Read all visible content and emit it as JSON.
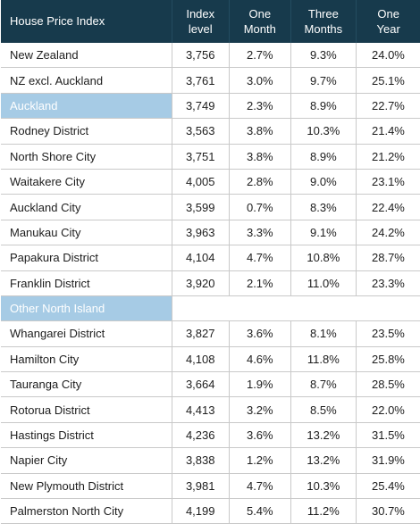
{
  "headers": [
    "House Price Index",
    "Index level",
    "One Month",
    "Three Months",
    "One Year"
  ],
  "rows": [
    {
      "name": "New Zealand",
      "index": "3,756",
      "month": "2.7%",
      "three": "9.3%",
      "year": "24.0%"
    },
    {
      "name": "NZ excl. Auckland",
      "index": "3,761",
      "month": "3.0%",
      "three": "9.7%",
      "year": "25.1%"
    },
    {
      "name": "Auckland",
      "index": "3,749",
      "month": "2.3%",
      "three": "8.9%",
      "year": "22.7%",
      "section": true
    },
    {
      "name": "Rodney District",
      "index": "3,563",
      "month": "3.8%",
      "three": "10.3%",
      "year": "21.4%"
    },
    {
      "name": "North Shore City",
      "index": "3,751",
      "month": "3.8%",
      "three": "8.9%",
      "year": "21.2%"
    },
    {
      "name": "Waitakere City",
      "index": "4,005",
      "month": "2.8%",
      "three": "9.0%",
      "year": "23.1%"
    },
    {
      "name": "Auckland City",
      "index": "3,599",
      "month": "0.7%",
      "three": "8.3%",
      "year": "22.4%"
    },
    {
      "name": "Manukau City",
      "index": "3,963",
      "month": "3.3%",
      "three": "9.1%",
      "year": "24.2%"
    },
    {
      "name": "Papakura District",
      "index": "4,104",
      "month": "4.7%",
      "three": "10.8%",
      "year": "28.7%"
    },
    {
      "name": "Franklin District",
      "index": "3,920",
      "month": "2.1%",
      "three": "11.0%",
      "year": "23.3%"
    },
    {
      "name": "Other North Island",
      "index": "",
      "month": "",
      "three": "",
      "year": "",
      "section": true,
      "empty": true
    },
    {
      "name": "Whangarei District",
      "index": "3,827",
      "month": "3.6%",
      "three": "8.1%",
      "year": "23.5%"
    },
    {
      "name": "Hamilton City",
      "index": "4,108",
      "month": "4.6%",
      "three": "11.8%",
      "year": "25.8%"
    },
    {
      "name": "Tauranga City",
      "index": "3,664",
      "month": "1.9%",
      "three": "8.7%",
      "year": "28.5%"
    },
    {
      "name": "Rotorua District",
      "index": "4,413",
      "month": "3.2%",
      "three": "8.5%",
      "year": "22.0%"
    },
    {
      "name": "Hastings District",
      "index": "4,236",
      "month": "3.6%",
      "three": "13.2%",
      "year": "31.5%"
    },
    {
      "name": "Napier City",
      "index": "3,838",
      "month": "1.2%",
      "three": "13.2%",
      "year": "31.9%"
    },
    {
      "name": "New Plymouth District",
      "index": "3,981",
      "month": "4.7%",
      "three": "10.3%",
      "year": "25.4%"
    },
    {
      "name": "Palmerston North City",
      "index": "4,199",
      "month": "5.4%",
      "three": "11.2%",
      "year": "30.7%"
    }
  ]
}
